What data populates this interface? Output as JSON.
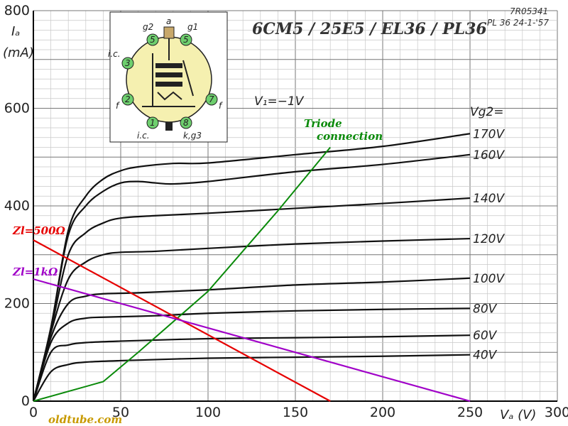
{
  "chart_data": {
    "type": "line",
    "title": "6CM5 / 25E5 / EL36 / PL36",
    "reference_code": "7R05341",
    "reference_date": "PL 36  24-1-'57",
    "xlabel": "Vₐ (V)",
    "ylabel_main": "Iₐ",
    "ylabel_unit": "(mA)",
    "xlim": [
      0,
      300
    ],
    "ylim": [
      0,
      800
    ],
    "x_ticks": [
      "0",
      "50",
      "100",
      "150",
      "200",
      "250",
      "300"
    ],
    "y_ticks": [
      "0",
      "200",
      "400",
      "600",
      "800"
    ],
    "grid": true,
    "vg1_label": "V₁=−1V",
    "vg2_header": "Vg2=",
    "series": [
      {
        "name": "170V",
        "points": [
          [
            0,
            0
          ],
          [
            10,
            150
          ],
          [
            20,
            350
          ],
          [
            30,
            420
          ],
          [
            40,
            455
          ],
          [
            50,
            472
          ],
          [
            60,
            480
          ],
          [
            80,
            487
          ],
          [
            100,
            488
          ],
          [
            150,
            505
          ],
          [
            200,
            522
          ],
          [
            250,
            548
          ]
        ]
      },
      {
        "name": "160V",
        "points": [
          [
            0,
            0
          ],
          [
            10,
            150
          ],
          [
            20,
            340
          ],
          [
            30,
            400
          ],
          [
            40,
            430
          ],
          [
            50,
            447
          ],
          [
            60,
            450
          ],
          [
            70,
            447
          ],
          [
            80,
            445
          ],
          [
            100,
            450
          ],
          [
            150,
            470
          ],
          [
            200,
            485
          ],
          [
            250,
            505
          ]
        ]
      },
      {
        "name": "140V",
        "points": [
          [
            0,
            0
          ],
          [
            10,
            145
          ],
          [
            20,
            300
          ],
          [
            30,
            345
          ],
          [
            40,
            365
          ],
          [
            50,
            375
          ],
          [
            70,
            380
          ],
          [
            100,
            385
          ],
          [
            150,
            395
          ],
          [
            200,
            405
          ],
          [
            250,
            416
          ]
        ]
      },
      {
        "name": "120V",
        "points": [
          [
            0,
            0
          ],
          [
            10,
            140
          ],
          [
            20,
            250
          ],
          [
            30,
            285
          ],
          [
            40,
            300
          ],
          [
            50,
            305
          ],
          [
            70,
            307
          ],
          [
            100,
            313
          ],
          [
            150,
            322
          ],
          [
            200,
            328
          ],
          [
            250,
            333
          ]
        ]
      },
      {
        "name": "100V",
        "points": [
          [
            0,
            0
          ],
          [
            10,
            130
          ],
          [
            20,
            200
          ],
          [
            30,
            215
          ],
          [
            40,
            220
          ],
          [
            60,
            222
          ],
          [
            100,
            228
          ],
          [
            150,
            238
          ],
          [
            200,
            244
          ],
          [
            250,
            252
          ]
        ]
      },
      {
        "name": "80V",
        "points": [
          [
            0,
            0
          ],
          [
            10,
            120
          ],
          [
            20,
            160
          ],
          [
            30,
            170
          ],
          [
            40,
            172
          ],
          [
            70,
            175
          ],
          [
            100,
            180
          ],
          [
            150,
            185
          ],
          [
            200,
            188
          ],
          [
            250,
            190
          ]
        ]
      },
      {
        "name": "60V",
        "points": [
          [
            0,
            0
          ],
          [
            10,
            100
          ],
          [
            20,
            115
          ],
          [
            30,
            120
          ],
          [
            50,
            123
          ],
          [
            100,
            128
          ],
          [
            150,
            130
          ],
          [
            200,
            132
          ],
          [
            250,
            135
          ]
        ]
      },
      {
        "name": "40V",
        "points": [
          [
            0,
            0
          ],
          [
            10,
            60
          ],
          [
            20,
            75
          ],
          [
            30,
            80
          ],
          [
            50,
            83
          ],
          [
            100,
            88
          ],
          [
            150,
            90
          ],
          [
            200,
            92
          ],
          [
            250,
            95
          ]
        ]
      }
    ],
    "triode_connection": {
      "label_line1": "Triode",
      "label_line2": "connection",
      "color": "#0a8a0a",
      "points": [
        [
          0,
          0
        ],
        [
          40,
          40
        ],
        [
          60,
          100
        ],
        [
          100,
          225
        ],
        [
          140,
          390
        ],
        [
          170,
          520
        ]
      ]
    },
    "load_lines": [
      {
        "label": "Zl=500Ω",
        "color": "#e60000",
        "points": [
          [
            0,
            330
          ],
          [
            170,
            0
          ]
        ]
      },
      {
        "label": "Zl=1kΩ",
        "color": "#a000c8",
        "points": [
          [
            0,
            250
          ],
          [
            250,
            0
          ]
        ]
      }
    ],
    "inset": {
      "pins": [
        {
          "num": "1",
          "label": "i.c."
        },
        {
          "num": "2",
          "label": "f"
        },
        {
          "num": "3",
          "label": "i.c."
        },
        {
          "num": "4",
          "label": "g2"
        },
        {
          "num": "5",
          "label": "g1"
        },
        {
          "num": "7",
          "label": "f"
        },
        {
          "num": "8",
          "label": "k,g3"
        }
      ],
      "top_cap_label": "a",
      "pin_circle_color": "#6ecf6e",
      "envelope_color": "#f5f0b0"
    },
    "watermark": "oldtube.com"
  }
}
